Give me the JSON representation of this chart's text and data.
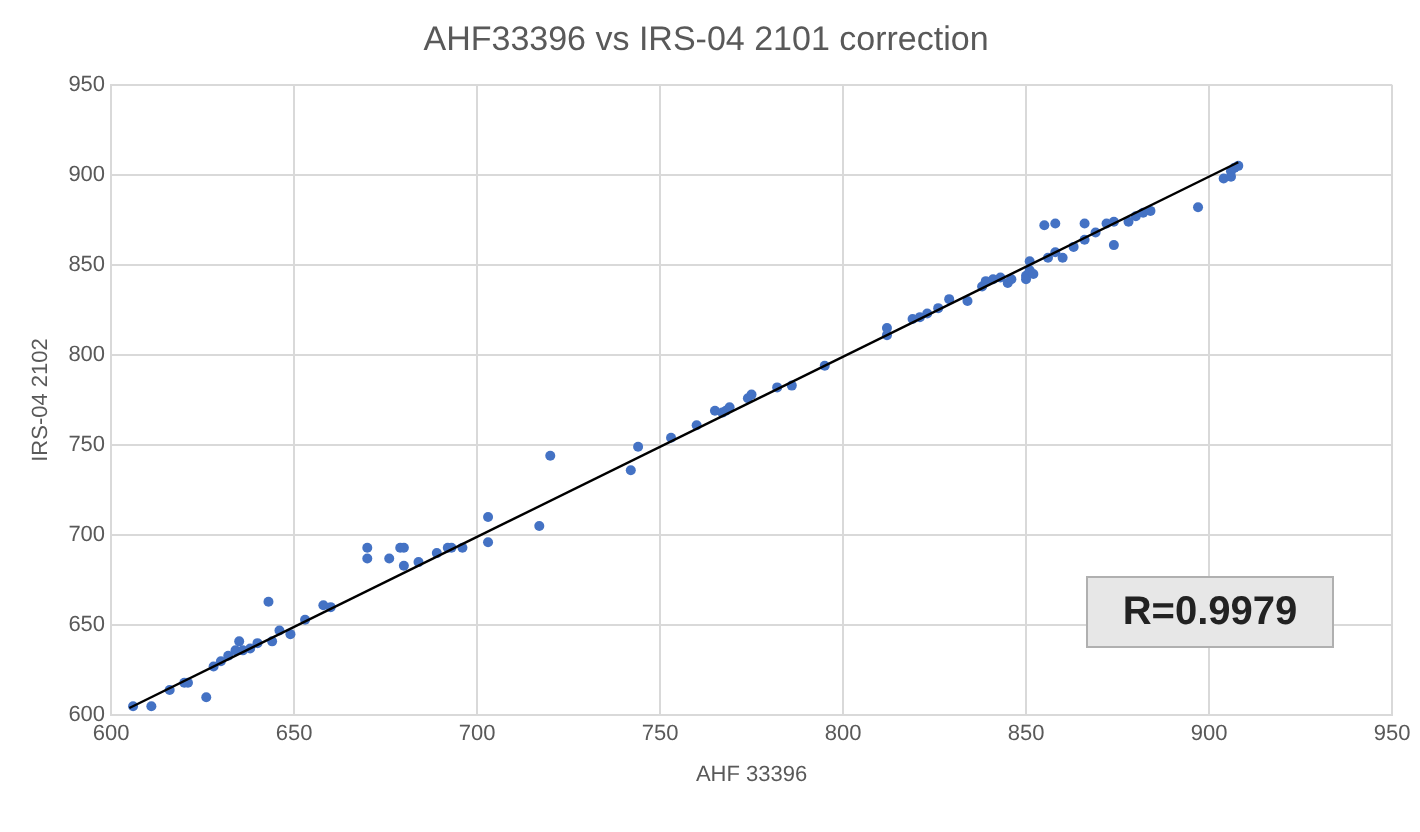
{
  "chart_data": {
    "type": "scatter",
    "title": "AHF33396 vs IRS-04 2101 correction",
    "xlabel": "AHF 33396",
    "ylabel": "IRS-04 2102",
    "xlim": [
      600,
      950
    ],
    "xticks": [
      600,
      650,
      700,
      750,
      800,
      850,
      900,
      950
    ],
    "ylim": [
      600,
      950
    ],
    "yticks": [
      600,
      650,
      700,
      750,
      800,
      850,
      900,
      950
    ],
    "grid": true,
    "marker": "circle",
    "annotations": [
      "R=0.9979"
    ],
    "series": [
      {
        "color": "#4472c4",
        "x": [
          606,
          611,
          616,
          620,
          621,
          626,
          628,
          630,
          632,
          634,
          636,
          635,
          638,
          640,
          643,
          644,
          646,
          649,
          653,
          658,
          660,
          670,
          670,
          676,
          679,
          680,
          680,
          684,
          689,
          692,
          693,
          696,
          703,
          703,
          717,
          720,
          742,
          744,
          753,
          760,
          765,
          768,
          769,
          767,
          774,
          775,
          782,
          786,
          795,
          812,
          812,
          819,
          821,
          823,
          826,
          829,
          834,
          838,
          839,
          841,
          843,
          845,
          846,
          850,
          851,
          851,
          850,
          852,
          855,
          858,
          856,
          858,
          860,
          863,
          866,
          866,
          869,
          872,
          874,
          874,
          878,
          880,
          882,
          884,
          897,
          904,
          906,
          906,
          907,
          908
        ],
        "values": [
          605,
          605,
          614,
          618,
          618,
          610,
          627,
          630,
          633,
          636,
          636,
          641,
          637,
          640,
          663,
          641,
          647,
          645,
          653,
          661,
          660,
          693,
          687,
          687,
          693,
          693,
          683,
          685,
          690,
          693,
          693,
          693,
          710,
          696,
          705,
          744,
          736,
          749,
          754,
          761,
          769,
          769,
          771,
          768,
          776,
          778,
          782,
          783,
          794,
          811,
          815,
          820,
          821,
          823,
          826,
          831,
          830,
          838,
          841,
          842,
          843,
          840,
          842,
          844,
          847,
          852,
          842,
          845,
          872,
          873,
          854,
          857,
          854,
          860,
          864,
          873,
          868,
          873,
          874,
          861,
          874,
          877,
          879,
          880,
          882,
          898,
          899,
          902,
          904,
          905
        ]
      },
      {
        "type": "line",
        "color": "#000000",
        "marker": "none",
        "x": [
          605,
          908
        ],
        "values": [
          604,
          907
        ]
      }
    ]
  }
}
